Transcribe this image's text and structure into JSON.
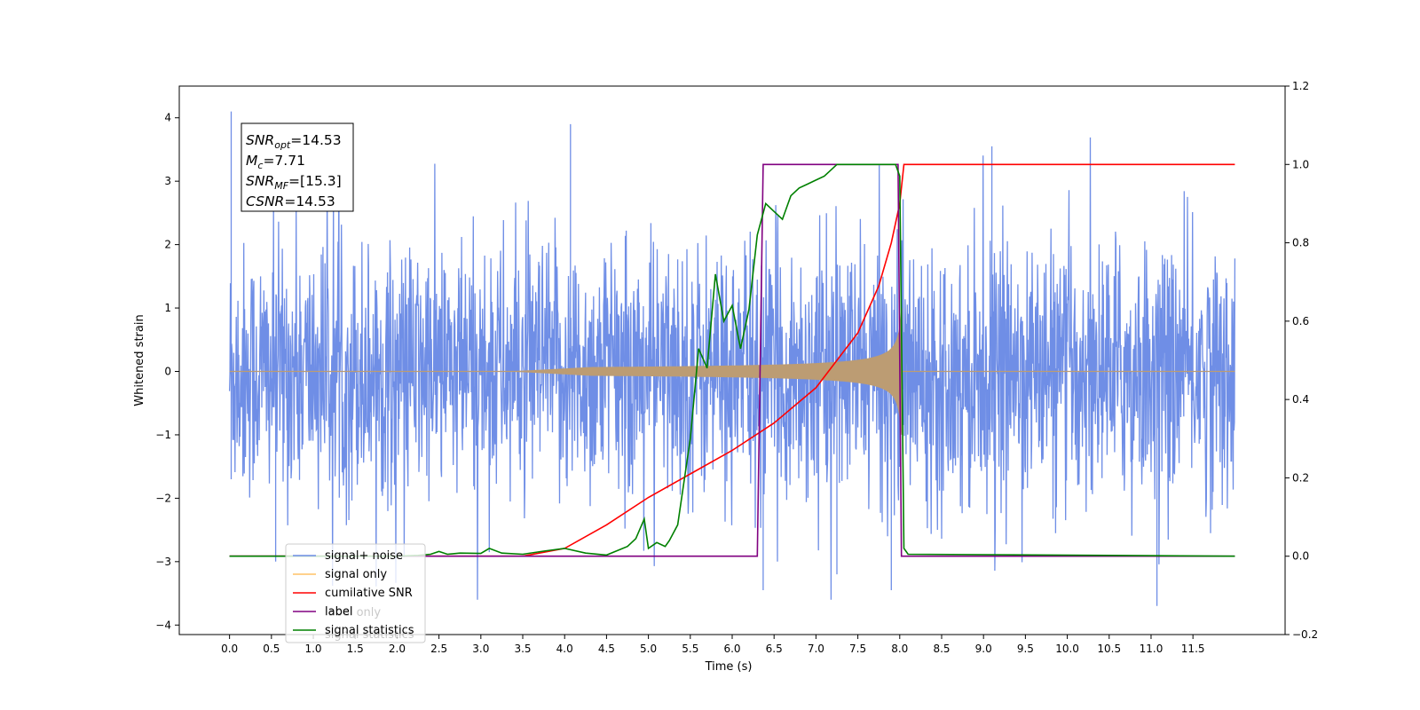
{
  "chart_data": {
    "type": "line",
    "title": "",
    "xlabel": "Time (s)",
    "ylabel": "Whitened strain",
    "xlim": [
      -0.6,
      12.6
    ],
    "ylim": [
      -4.15,
      4.5
    ],
    "ylim_right": [
      -0.2,
      1.2
    ],
    "xticks": [
      0.0,
      0.5,
      1.0,
      1.5,
      2.0,
      2.5,
      3.0,
      3.5,
      4.0,
      4.5,
      5.0,
      5.5,
      6.0,
      6.5,
      7.0,
      7.5,
      8.0,
      8.5,
      9.0,
      9.5,
      10.0,
      10.5,
      11.0,
      11.5
    ],
    "xtick_labels": [
      "0.0",
      "0.5",
      "1.0",
      "1.5",
      "2.0",
      "2.5",
      "3.0",
      "3.5",
      "4.0",
      "4.5",
      "5.0",
      "5.5",
      "6.0",
      "6.5",
      "7.0",
      "7.5",
      "8.0",
      "8.5",
      "9.0",
      "9.5",
      "10.0",
      "10.5",
      "11.0",
      "11.5"
    ],
    "yticks_left": [
      -4,
      -3,
      -2,
      -1,
      0,
      1,
      2,
      3,
      4
    ],
    "ytick_labels_left": [
      "−4",
      "−3",
      "−2",
      "−1",
      "0",
      "1",
      "2",
      "3",
      "4"
    ],
    "yticks_right": [
      -0.2,
      0.0,
      0.2,
      0.4,
      0.6,
      0.8,
      1.0,
      1.2
    ],
    "ytick_labels_right": [
      "−0.2",
      "0.0",
      "0.2",
      "0.4",
      "0.6",
      "0.8",
      "1.0",
      "1.2"
    ],
    "grid": false,
    "legend_position": "lower-left",
    "colors": {
      "noise": "#6f8ee6",
      "signal": "#ffc266",
      "overlap": "#bc9c73",
      "snr": "#ff0000",
      "label": "#800080",
      "stat": "#008000"
    },
    "series": [
      {
        "name": "signal+ noise",
        "axis": "left",
        "x_range": [
          0.0,
          12.0
        ],
        "description_values": {
          "amplitude_range": [
            -3.7,
            4.1
          ]
        }
      },
      {
        "name": "signal only",
        "axis": "left",
        "x_range": [
          0.0,
          12.0
        ],
        "envelope": {
          "start": 3.3,
          "end": 8.03,
          "peak_amplitude": 1.0
        }
      },
      {
        "name": "cumilative SNR",
        "axis": "right",
        "x": [
          0.0,
          3.0,
          3.5,
          4.0,
          4.5,
          5.0,
          5.5,
          6.0,
          6.5,
          7.0,
          7.5,
          7.75,
          7.9,
          8.0,
          8.05,
          12.0
        ],
        "y": [
          0.0,
          0.0,
          0.0,
          0.02,
          0.08,
          0.15,
          0.21,
          0.27,
          0.34,
          0.43,
          0.57,
          0.69,
          0.8,
          0.9,
          1.0,
          1.0
        ]
      },
      {
        "name": "label",
        "axis": "right",
        "x": [
          0.0,
          6.3,
          6.37,
          7.98,
          8.02,
          12.0
        ],
        "y": [
          0.0,
          0.0,
          1.0,
          1.0,
          0.0,
          0.0
        ]
      },
      {
        "name": "signal statistics",
        "axis": "right",
        "x": [
          0.0,
          2.0,
          2.25,
          2.4,
          2.5,
          2.6,
          2.75,
          3.0,
          3.1,
          3.25,
          3.5,
          3.75,
          4.0,
          4.25,
          4.5,
          4.75,
          4.85,
          4.95,
          5.0,
          5.1,
          5.2,
          5.25,
          5.35,
          5.5,
          5.6,
          5.7,
          5.8,
          5.9,
          6.0,
          6.1,
          6.2,
          6.3,
          6.4,
          6.5,
          6.6,
          6.7,
          6.8,
          6.9,
          7.0,
          7.1,
          7.2,
          7.25,
          7.3,
          7.5,
          7.75,
          7.95,
          8.0,
          8.05,
          8.1,
          12.0
        ],
        "y": [
          0.0,
          0.0,
          0.002,
          0.005,
          0.012,
          0.005,
          0.008,
          0.007,
          0.02,
          0.008,
          0.005,
          0.013,
          0.02,
          0.008,
          0.003,
          0.025,
          0.045,
          0.095,
          0.02,
          0.035,
          0.025,
          0.04,
          0.08,
          0.3,
          0.53,
          0.48,
          0.72,
          0.6,
          0.64,
          0.53,
          0.63,
          0.82,
          0.9,
          0.88,
          0.86,
          0.92,
          0.94,
          0.95,
          0.96,
          0.97,
          0.99,
          1.0,
          1.0,
          1.0,
          1.0,
          1.0,
          0.97,
          0.02,
          0.005,
          0.0
        ]
      }
    ],
    "legend_entries": [
      "signal+ noise",
      "signal only",
      "cumilative SNR",
      "label",
      "signal statistics"
    ],
    "legend_ghost_text": [
      "label only",
      "signal statistics"
    ],
    "annotation_box": {
      "lines": [
        {
          "base": "SNR",
          "sub": "opt",
          "rest": "=14.53"
        },
        {
          "base": "M",
          "sub": "c",
          "rest": "=7.71"
        },
        {
          "base": "SNR",
          "sub": "MF",
          "rest": "=[15.3]"
        },
        {
          "base": "CSNR",
          "sub": "",
          "rest": "=14.53"
        }
      ]
    }
  }
}
